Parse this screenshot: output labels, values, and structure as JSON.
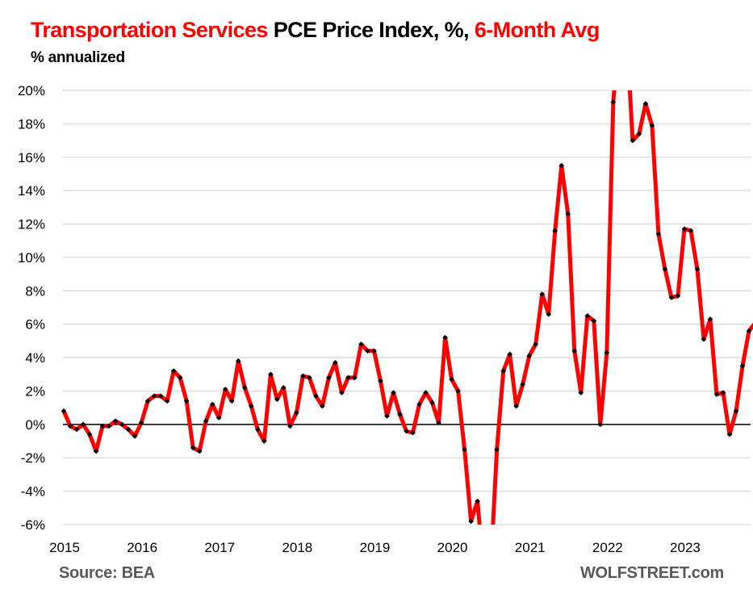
{
  "title": {
    "part1": "Transportation Services",
    "part2": " PCE Price Index, %, ",
    "part3": "6-Month Avg"
  },
  "subtitle": "% annualized",
  "footer": {
    "source": "Source: BEA",
    "brand": "WOLFSTREET.com"
  },
  "colors": {
    "line": "#ff0000",
    "marker": "#000000",
    "grid": "#d9d9d9",
    "zero_line": "#000000",
    "title_accent": "#ff0000"
  },
  "chart_data": {
    "type": "line",
    "title": "Transportation Services PCE Price Index, %, 6-Month Avg",
    "subtitle": "% annualized",
    "xlabel": "",
    "ylabel": "% annualized",
    "ylim": [
      -6,
      20
    ],
    "yticks": [
      20,
      18,
      16,
      14,
      12,
      10,
      8,
      6,
      4,
      2,
      0,
      -2,
      -4,
      -6
    ],
    "ytick_labels": [
      "20%",
      "18%",
      "16%",
      "14%",
      "12%",
      "10%",
      "8%",
      "6%",
      "4%",
      "2%",
      "0%",
      "-2%",
      "-4%",
      "-6%"
    ],
    "xtick_labels": [
      "2015",
      "2016",
      "2017",
      "2018",
      "2019",
      "2020",
      "2021",
      "2022",
      "2023"
    ],
    "grid": true,
    "legend": "none",
    "start": "2015-01",
    "frequency": "monthly",
    "series": [
      {
        "name": "Transportation Services PCE Price Index, 6-Month Avg",
        "values": [
          0.8,
          -0.1,
          -0.3,
          0.0,
          -0.6,
          -1.6,
          -0.1,
          -0.1,
          0.2,
          0.0,
          -0.3,
          -0.7,
          0.1,
          1.4,
          1.7,
          1.7,
          1.4,
          3.2,
          2.8,
          1.4,
          -1.4,
          -1.6,
          0.2,
          1.2,
          0.4,
          2.1,
          1.4,
          3.8,
          2.2,
          1.1,
          -0.3,
          -1.0,
          3.0,
          1.5,
          2.2,
          -0.1,
          0.7,
          2.9,
          2.8,
          1.7,
          1.1,
          2.8,
          3.7,
          1.9,
          2.8,
          2.8,
          4.8,
          4.4,
          4.4,
          2.6,
          0.5,
          1.9,
          0.6,
          -0.4,
          -0.5,
          1.2,
          1.9,
          1.3,
          0.1,
          5.2,
          2.7,
          2.0,
          -1.5,
          -5.8,
          -4.6,
          -9.0,
          -9.0,
          -1.5,
          3.2,
          4.2,
          1.1,
          2.4,
          4.1,
          4.8,
          7.8,
          6.6,
          11.6,
          15.5,
          12.6,
          4.4,
          1.9,
          6.5,
          6.2,
          0.0,
          4.3,
          19.3,
          24.0,
          24.0,
          17.0,
          17.4,
          19.2,
          17.9,
          11.4,
          9.3,
          7.6,
          7.7,
          11.7,
          11.6,
          9.3,
          5.1,
          6.3,
          1.8,
          1.9,
          -0.6,
          0.8,
          3.5,
          5.6,
          6.1
        ],
        "note": "Values beyond -6% / 20% are clipped by the axis range in the chart"
      }
    ]
  }
}
